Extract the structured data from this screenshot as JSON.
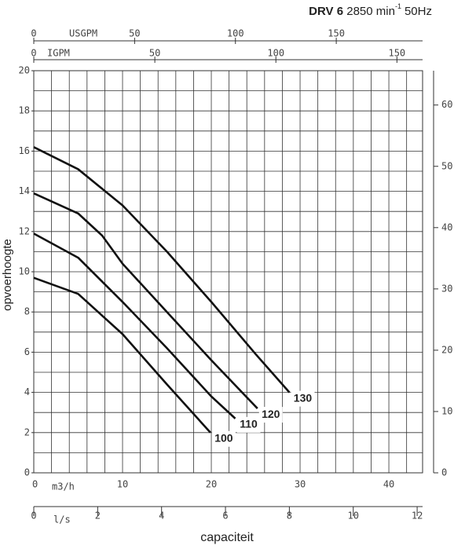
{
  "chart_data": {
    "type": "line",
    "title": {
      "model": "DRV 6",
      "speed": "2850 min",
      "exponent": "-1",
      "frequency": "50Hz"
    },
    "xlabel": "m3/h",
    "x_title": "capaciteit",
    "ylabel": "opvoerhoogte",
    "xlim": [
      0,
      43.8
    ],
    "xticks": [
      0,
      10,
      20,
      30,
      40
    ],
    "xgrid": [
      0,
      2,
      4,
      6,
      8,
      10,
      12,
      14,
      16,
      18,
      20,
      22,
      24,
      26,
      28,
      30,
      32,
      34,
      36,
      38,
      40,
      42
    ],
    "ylim": [
      0,
      20
    ],
    "yticks": [
      0,
      2,
      4,
      6,
      8,
      10,
      12,
      14,
      16,
      18,
      20
    ],
    "ygrid": [
      0,
      1,
      2,
      3,
      4,
      5,
      6,
      7,
      8,
      9,
      10,
      11,
      12,
      13,
      14,
      15,
      16,
      17,
      18,
      19,
      20
    ],
    "y2lim": [
      0,
      65.6
    ],
    "y2ticks": [
      0,
      10,
      20,
      30,
      40,
      50,
      60
    ],
    "top_axes": [
      {
        "label": "USGPM",
        "xlim": [
          0,
          192.8
        ],
        "xticks": [
          0,
          50,
          100,
          150
        ]
      },
      {
        "label": "IGPM",
        "xlim": [
          0,
          160.6
        ],
        "xticks": [
          0,
          50,
          100,
          150
        ]
      }
    ],
    "bottom_axis": {
      "label": "l/s",
      "xlim": [
        0,
        12.17
      ],
      "xticks": [
        0,
        2,
        4,
        6,
        8,
        10,
        12
      ]
    },
    "series": [
      {
        "name": "130",
        "color": "#111111",
        "x": [
          0,
          5,
          10,
          15,
          20,
          25,
          28.8
        ],
        "values": [
          16.2,
          15.1,
          13.3,
          11.0,
          8.5,
          5.9,
          4.0
        ]
      },
      {
        "name": "120",
        "color": "#111111",
        "x": [
          0,
          5,
          7.7,
          10,
          15,
          20,
          25.2
        ],
        "values": [
          13.9,
          12.9,
          11.8,
          10.4,
          8.0,
          5.6,
          3.2
        ]
      },
      {
        "name": "110",
        "color": "#111111",
        "x": [
          0,
          5,
          10,
          15,
          20,
          22.7
        ],
        "values": [
          11.9,
          10.7,
          8.5,
          6.2,
          3.8,
          2.7
        ]
      },
      {
        "name": "100",
        "color": "#111111",
        "x": [
          0,
          5,
          10,
          15,
          19.9
        ],
        "values": [
          9.7,
          8.9,
          6.9,
          4.4,
          2.0
        ]
      }
    ]
  }
}
